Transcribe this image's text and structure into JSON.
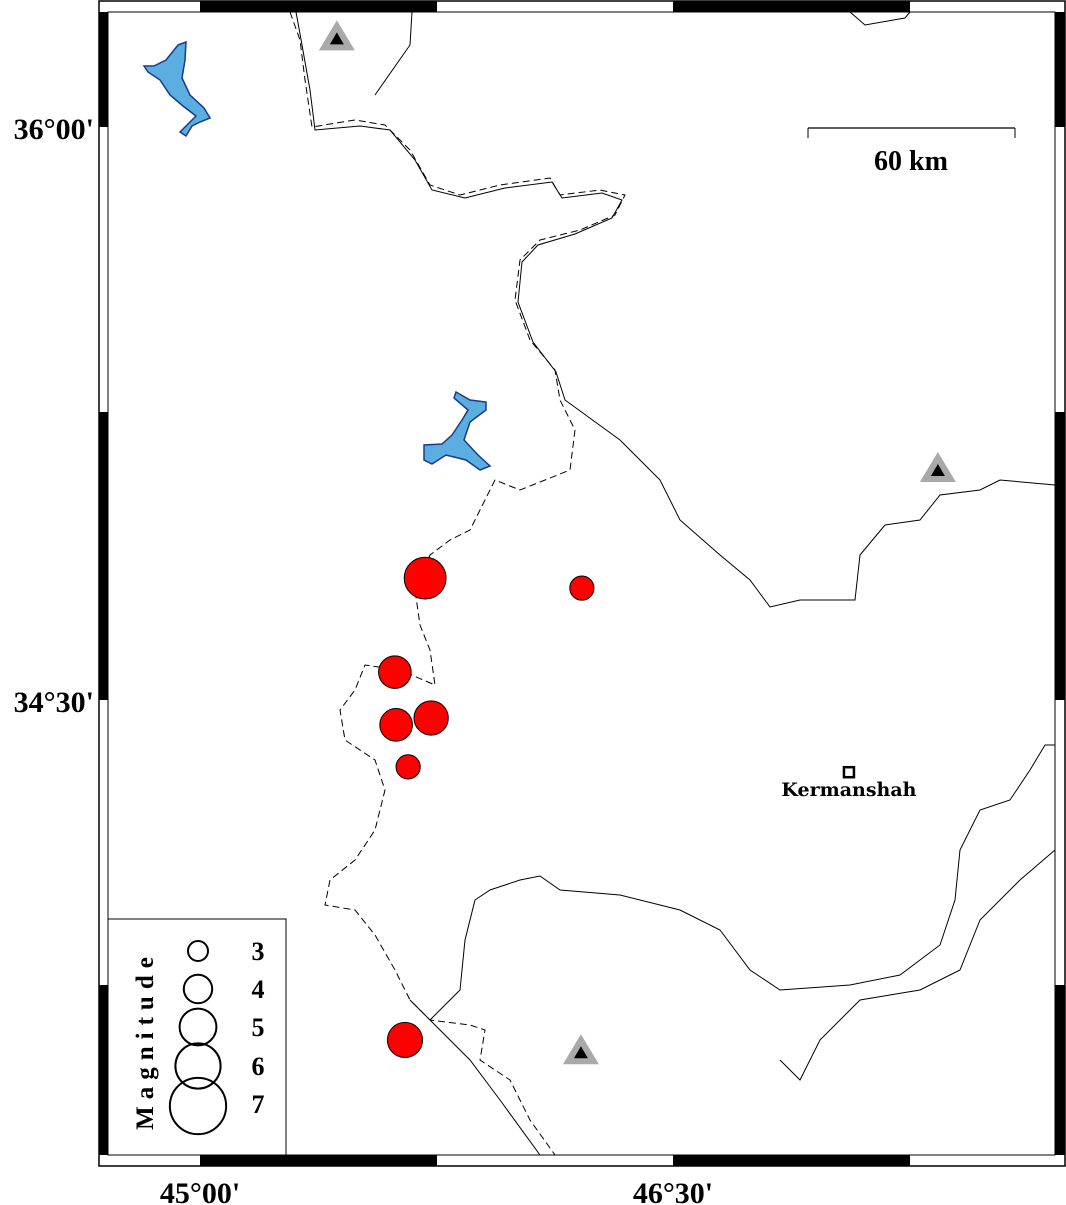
{
  "map": {
    "lon_range": [
      44.69,
      47.69
    ],
    "lat_range": [
      33.23,
      36.3
    ],
    "ticks_lon": [
      {
        "value": 45.0,
        "label": "45°00'"
      },
      {
        "value": 46.5,
        "label": "46°30'"
      }
    ],
    "ticks_lat": [
      {
        "value": 36.0,
        "label": "36°00'"
      },
      {
        "value": 34.5,
        "label": "34°30'"
      }
    ],
    "scale_bar": {
      "label": "60 km",
      "length_km": 60
    },
    "colors": {
      "earthquake": "#ff0000",
      "lake": "#5aaee0",
      "volcano_outer": "#a9a9a9",
      "volcano_inner": "#000000"
    }
  },
  "earthquakes": [
    {
      "lon": 45.714,
      "lat": 34.819,
      "mag": 5.6
    },
    {
      "lon": 46.211,
      "lat": 34.793,
      "mag": 3.5
    },
    {
      "lon": 45.618,
      "lat": 34.573,
      "mag": 4.5
    },
    {
      "lon": 45.622,
      "lat": 34.435,
      "mag": 4.5
    },
    {
      "lon": 45.733,
      "lat": 34.453,
      "mag": 4.7
    },
    {
      "lon": 45.66,
      "lat": 34.325,
      "mag": 3.5
    },
    {
      "lon": 45.65,
      "lat": 33.61,
      "mag": 4.8
    }
  ],
  "volcanoes": [
    {
      "lon": 45.434,
      "lat": 36.232
    },
    {
      "lon": 47.34,
      "lat": 35.102
    },
    {
      "lon": 46.208,
      "lat": 33.578
    }
  ],
  "cities": [
    {
      "name": "Kermanshah",
      "lon": 47.058,
      "lat": 34.311
    }
  ],
  "legend": {
    "title": "Magnitude",
    "magnitudes": [
      "3",
      "4",
      "5",
      "6",
      "7"
    ]
  }
}
